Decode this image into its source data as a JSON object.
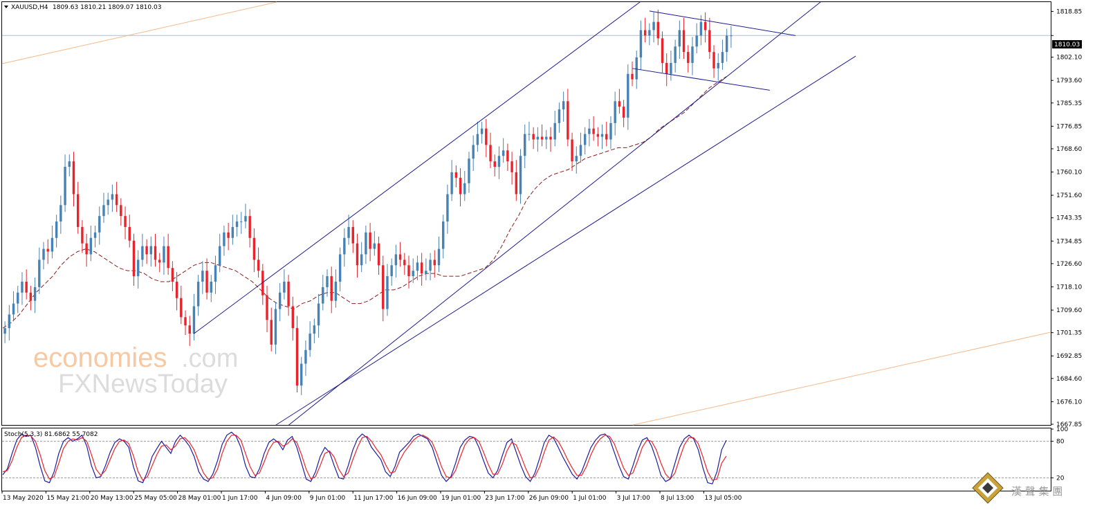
{
  "header": {
    "symbol": "XAUUSD,H4",
    "ohlc": "1809.63 1810.21 1809.07 1810.03"
  },
  "price_tag": "1810.03",
  "watermark": {
    "line1_colored": "economies",
    "line1_suffix": ".com",
    "line2": "FXNewsToday",
    "cn": "漢 聲 集 團"
  },
  "colors": {
    "bull": "#4682b4",
    "bear": "#e8232b",
    "ma": "#8b1a1a",
    "trend": "#1a1a8c",
    "fib": "#f4b98a",
    "stoch_main": "#1a1aa0",
    "stoch_signal": "#e8232b",
    "price_line": "#9ec7d8"
  },
  "chart_data": [
    {
      "type": "candlestick",
      "title": "XAUUSD,H4",
      "ylim": [
        1667.85,
        1822.0
      ],
      "y_ticks": [
        "1818.85",
        "1810.03",
        "1802.10",
        "1793.60",
        "1785.35",
        "1776.85",
        "1768.60",
        "1760.10",
        "1751.60",
        "1743.35",
        "1734.85",
        "1726.60",
        "1718.10",
        "1709.60",
        "1701.35",
        "1692.85",
        "1684.60",
        "1676.10",
        "1667.85"
      ],
      "x_ticks": [
        "13 May 2020",
        "15 May 21:00",
        "20 May 13:00",
        "25 May 05:00",
        "28 May 01:00",
        "1 Jun 17:00",
        "4 Jun 09:00",
        "9 Jun 01:00",
        "11 Jun 17:00",
        "16 Jun 09:00",
        "19 Jun 01:00",
        "23 Jun 17:00",
        "26 Jun 09:00",
        "1 Jul 01:00",
        "3 Jul 17:00",
        "8 Jul 13:00",
        "13 Jul 05:00"
      ],
      "closes": [
        1703,
        1708,
        1712,
        1716,
        1720,
        1716,
        1713,
        1718,
        1728,
        1732,
        1731,
        1736,
        1742,
        1748,
        1762,
        1764,
        1752,
        1740,
        1734,
        1730,
        1736,
        1738,
        1744,
        1748,
        1750,
        1752,
        1748,
        1744,
        1740,
        1735,
        1722,
        1728,
        1733,
        1730,
        1733,
        1728,
        1727,
        1733,
        1725,
        1720,
        1714,
        1707,
        1704,
        1701,
        1711,
        1720,
        1724,
        1716,
        1720,
        1726,
        1733,
        1738,
        1736,
        1740,
        1742,
        1742,
        1744,
        1736,
        1728,
        1724,
        1715,
        1706,
        1697,
        1710,
        1716,
        1720,
        1711,
        1703,
        1682,
        1690,
        1695,
        1701,
        1704,
        1712,
        1718,
        1722,
        1713,
        1720,
        1730,
        1736,
        1740,
        1734,
        1726,
        1730,
        1738,
        1732,
        1734,
        1726,
        1710,
        1722,
        1726,
        1730,
        1728,
        1726,
        1722,
        1724,
        1727,
        1723,
        1724,
        1728,
        1726,
        1732,
        1742,
        1752,
        1760,
        1758,
        1752,
        1756,
        1765,
        1770,
        1774,
        1776,
        1770,
        1764,
        1762,
        1766,
        1768,
        1764,
        1760,
        1752,
        1766,
        1774,
        1774,
        1772,
        1773,
        1772,
        1773,
        1772,
        1778,
        1783,
        1786,
        1772,
        1764,
        1766,
        1770,
        1774,
        1776,
        1774,
        1773,
        1774,
        1772,
        1778,
        1786,
        1784,
        1780,
        1796,
        1794,
        1802,
        1812,
        1810,
        1812,
        1815,
        1809,
        1800,
        1796,
        1800,
        1806,
        1812,
        1804,
        1800,
        1806,
        1810,
        1815,
        1812,
        1804,
        1798,
        1800,
        1804,
        1810,
        1810.03
      ],
      "moving_average_name": "",
      "moving_average": [
        1703,
        1705,
        1708,
        1712,
        1716,
        1719,
        1722,
        1726,
        1729,
        1731,
        1732,
        1731,
        1729,
        1727,
        1725,
        1724,
        1724,
        1723,
        1721,
        1720,
        1720,
        1722,
        1724,
        1726,
        1727,
        1727,
        1726,
        1725,
        1724,
        1722,
        1720,
        1717,
        1714,
        1712,
        1711,
        1710,
        1712,
        1713,
        1715,
        1716,
        1716,
        1714,
        1712,
        1712,
        1713,
        1715,
        1717,
        1717,
        1718,
        1720,
        1722,
        1723,
        1723,
        1722,
        1722,
        1722,
        1723,
        1724,
        1725,
        1728,
        1733,
        1739,
        1744,
        1750,
        1754,
        1757,
        1759,
        1760,
        1761,
        1763,
        1765,
        1766,
        1767,
        1768,
        1769,
        1769,
        1770,
        1771,
        1773,
        1776,
        1778,
        1780,
        1782,
        1785,
        1788,
        1791,
        1793,
        1795
      ]
    },
    {
      "type": "line",
      "title": "Stoch(5,3,3) 81.6862 55.7082",
      "ylim": [
        0,
        100
      ],
      "y_ticks": [
        "100",
        "80",
        "20"
      ],
      "levels": [
        80,
        20
      ],
      "series": [
        {
          "name": "81.6862",
          "values": [
            25,
            35,
            60,
            82,
            92,
            88,
            90,
            70,
            40,
            15,
            12,
            30,
            60,
            80,
            86,
            80,
            84,
            90,
            72,
            40,
            20,
            22,
            40,
            62,
            78,
            84,
            80,
            70,
            38,
            15,
            12,
            30,
            55,
            68,
            80,
            70,
            60,
            80,
            90,
            82,
            72,
            55,
            30,
            18,
            14,
            26,
            48,
            75,
            90,
            95,
            88,
            70,
            40,
            22,
            20,
            35,
            60,
            78,
            84,
            78,
            66,
            82,
            88,
            70,
            44,
            18,
            14,
            30,
            55,
            70,
            62,
            40,
            20,
            18,
            40,
            66,
            84,
            92,
            86,
            70,
            60,
            50,
            30,
            22,
            38,
            62,
            70,
            78,
            88,
            92,
            88,
            84,
            70,
            46,
            24,
            14,
            22,
            44,
            70,
            82,
            88,
            86,
            70,
            48,
            28,
            20,
            32,
            56,
            78,
            84,
            62,
            40,
            22,
            14,
            28,
            52,
            78,
            90,
            85,
            70,
            54,
            40,
            26,
            18,
            30,
            50,
            70,
            82,
            90,
            92,
            84,
            62,
            40,
            22,
            18,
            40,
            64,
            82,
            86,
            72,
            50,
            24,
            14,
            18,
            44,
            70,
            84,
            90,
            84,
            66,
            36,
            12,
            10,
            30,
            66,
            81.69
          ]
        },
        {
          "name": "55.7082",
          "values": [
            30,
            32,
            48,
            70,
            86,
            90,
            89,
            80,
            58,
            32,
            18,
            22,
            44,
            68,
            80,
            84,
            82,
            86,
            80,
            58,
            34,
            24,
            32,
            50,
            68,
            80,
            82,
            76,
            56,
            30,
            16,
            22,
            40,
            58,
            72,
            74,
            66,
            72,
            84,
            86,
            78,
            66,
            46,
            28,
            18,
            20,
            34,
            60,
            80,
            90,
            90,
            82,
            60,
            38,
            24,
            28,
            46,
            66,
            78,
            80,
            72,
            76,
            84,
            78,
            58,
            34,
            18,
            22,
            40,
            60,
            64,
            54,
            34,
            22,
            28,
            50,
            70,
            86,
            88,
            80,
            68,
            58,
            42,
            28,
            30,
            48,
            62,
            72,
            82,
            88,
            90,
            86,
            78,
            60,
            38,
            22,
            20,
            32,
            54,
            74,
            84,
            86,
            80,
            62,
            42,
            26,
            26,
            42,
            64,
            78,
            74,
            56,
            36,
            20,
            22,
            38,
            62,
            82,
            87,
            80,
            66,
            50,
            36,
            24,
            24,
            38,
            58,
            74,
            84,
            90,
            88,
            76,
            56,
            36,
            24,
            28,
            48,
            70,
            82,
            80,
            66,
            44,
            26,
            18,
            28,
            52,
            74,
            86,
            86,
            76,
            54,
            30,
            16,
            18,
            44,
            55.71
          ]
        }
      ]
    }
  ]
}
